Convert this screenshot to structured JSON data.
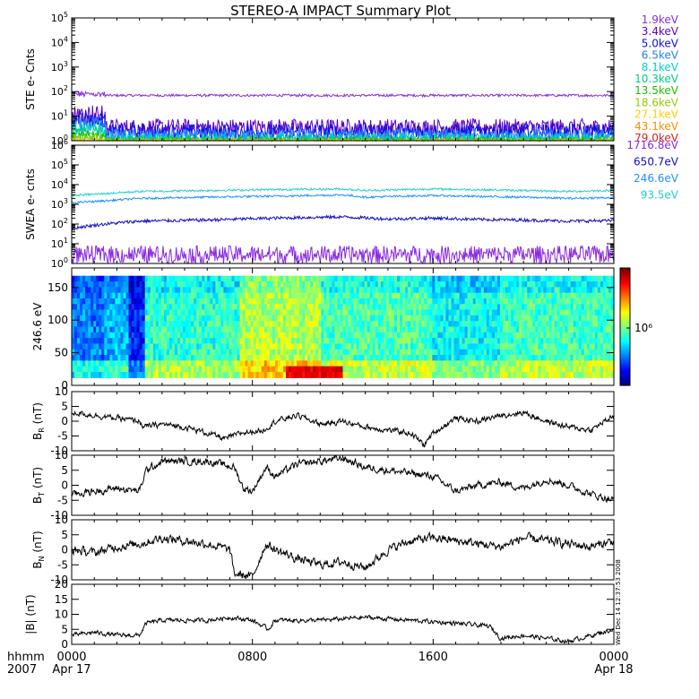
{
  "title": "STEREO-A IMPACT Summary Plot",
  "stamp": "Wed Dec 14 12:37:53 2008",
  "x_axis": {
    "ticks": [
      {
        "hour": 0,
        "label": "0000",
        "sub": "Apr 17"
      },
      {
        "hour": 8,
        "label": "0800",
        "sub": ""
      },
      {
        "hour": 16,
        "label": "1600",
        "sub": ""
      },
      {
        "hour": 24,
        "label": "0000",
        "sub": "Apr 18"
      }
    ],
    "corner_top": "hhmm",
    "corner_bottom": "2007",
    "range": [
      0,
      24
    ]
  },
  "chart_data": [
    {
      "id": "ste",
      "type": "line",
      "ylabel": "STE e- Cnts",
      "yscale": "log",
      "ylim_exp": [
        0,
        5
      ],
      "ticks": [
        0,
        1,
        2,
        3,
        4,
        5
      ],
      "series": [
        {
          "name": "1.9keV",
          "color": "#8a2be2",
          "level": 70,
          "noise": 0.05,
          "early": 100
        },
        {
          "name": "3.4keV",
          "color": "#5a00c8",
          "level": 3.5,
          "noise": 0.35,
          "early": 15
        },
        {
          "name": "5.0keV",
          "color": "#1010e0",
          "level": 2.2,
          "noise": 0.35,
          "early": 10
        },
        {
          "name": "6.5keV",
          "color": "#2080ff",
          "level": 1.5,
          "noise": 0.3,
          "early": 6
        },
        {
          "name": "8.1keV",
          "color": "#00d0d0",
          "level": 1.2,
          "noise": 0.25,
          "early": 4
        },
        {
          "name": "10.3keV",
          "color": "#00d080",
          "level": 1.0,
          "noise": 0.2,
          "early": 3
        },
        {
          "name": "13.5keV",
          "color": "#20c000",
          "level": 1.0,
          "noise": 0.15,
          "early": 2
        },
        {
          "name": "18.6keV",
          "color": "#90d000",
          "level": 1.0,
          "noise": 0.1,
          "early": 1.5
        },
        {
          "name": "27.1keV",
          "color": "#ffd000",
          "level": 1.0,
          "noise": 0.05,
          "early": 1.2
        },
        {
          "name": "43.1keV",
          "color": "#ff8c00",
          "level": 1.0,
          "noise": 0.02,
          "early": 1.1
        },
        {
          "name": "79.0keV",
          "color": "#e02020",
          "level": 1.0,
          "noise": 0.01,
          "early": 1.0
        }
      ]
    },
    {
      "id": "swea",
      "type": "line",
      "ylabel": "SWEA e- cnts",
      "yscale": "log",
      "ylim_exp": [
        0,
        6
      ],
      "ticks": [
        0,
        1,
        2,
        3,
        4,
        5,
        6
      ],
      "series": [
        {
          "name": "1716.8eV",
          "color": "#8a2be2",
          "x": [
            0,
            24
          ],
          "y": [
            3,
            3
          ],
          "noise": 0.5
        },
        {
          "name": "650.7eV",
          "color": "#1010c0",
          "x": [
            0,
            1.5,
            3,
            6,
            9,
            12,
            14,
            16,
            18,
            20,
            22,
            24
          ],
          "y": [
            60,
            100,
            140,
            160,
            200,
            230,
            180,
            200,
            170,
            160,
            140,
            150
          ],
          "noise": 0.08
        },
        {
          "name": "246.6eV",
          "color": "#1e90ff",
          "x": [
            0,
            1.5,
            3,
            6,
            9,
            12,
            13,
            16,
            18,
            20,
            22,
            24
          ],
          "y": [
            1200,
            1500,
            2000,
            2300,
            2600,
            3000,
            2300,
            2800,
            2500,
            2300,
            2000,
            2200
          ],
          "noise": 0.05
        },
        {
          "name": "93.5eV",
          "color": "#20d0d0",
          "x": [
            0,
            1.5,
            3,
            6,
            9,
            12,
            13,
            16,
            18,
            20,
            22,
            24
          ],
          "y": [
            2800,
            3500,
            4500,
            5000,
            5600,
            6000,
            5000,
            6000,
            5500,
            5000,
            4500,
            5000
          ],
          "noise": 0.05
        }
      ]
    },
    {
      "id": "pad",
      "type": "heatmap",
      "ylabel": "246.6 eV",
      "ylim": [
        0,
        180
      ],
      "ticks": [
        0,
        50,
        100,
        150
      ],
      "colorbar_label": "10⁶",
      "regions": [
        {
          "x0": 0,
          "x1": 1.5,
          "level": 0.25
        },
        {
          "x0": 1.5,
          "x1": 2.5,
          "level": 0.3
        },
        {
          "x0": 2.5,
          "x1": 3.2,
          "level": 0.15
        },
        {
          "x0": 3.2,
          "x1": 7.5,
          "level": 0.42
        },
        {
          "x0": 7.5,
          "x1": 11,
          "level": 0.55
        },
        {
          "x0": 11,
          "x1": 16,
          "level": 0.45
        },
        {
          "x0": 16,
          "x1": 19,
          "level": 0.38
        },
        {
          "x0": 19,
          "x1": 24,
          "level": 0.44
        }
      ]
    },
    {
      "id": "br",
      "type": "line",
      "ylabel": "BR (nT)",
      "ylabel_main": "B",
      "ylabel_sub": "R",
      "ylabel_unit": " (nT)",
      "ylim": [
        -10,
        10
      ],
      "ticks": [
        -10,
        -5,
        0,
        5,
        10
      ],
      "x": [
        0,
        1,
        2,
        3,
        3.2,
        4,
        5,
        6,
        6.8,
        7.5,
        8.5,
        9,
        10,
        11,
        12,
        13,
        14,
        15,
        15.6,
        16,
        17,
        18,
        19,
        20,
        21,
        22,
        23,
        24
      ],
      "y": [
        3,
        2,
        1,
        0,
        -2,
        -1,
        -2,
        -4,
        -6,
        -4,
        -3,
        0,
        2,
        -1,
        0,
        -2,
        -3,
        -4,
        -8,
        -4,
        1,
        0,
        2,
        3,
        0,
        -2,
        -3,
        2
      ],
      "noise": 0.8
    },
    {
      "id": "bt",
      "type": "line",
      "ylabel": "BT (nT)",
      "ylabel_main": "B",
      "ylabel_sub": "T",
      "ylabel_unit": " (nT)",
      "ylim": [
        -10,
        10
      ],
      "ticks": [
        -10,
        -5,
        0,
        5,
        10
      ],
      "x": [
        0,
        1,
        2,
        3,
        3.3,
        3.8,
        4,
        6,
        7.2,
        7.6,
        8,
        8.6,
        9,
        10,
        11,
        12,
        13,
        14,
        15,
        16,
        17,
        18,
        19,
        20,
        21,
        22,
        23,
        24
      ],
      "y": [
        -3,
        -2,
        -1,
        -2,
        5,
        7,
        8,
        8,
        6,
        -1,
        -2,
        6,
        3,
        7,
        8,
        9,
        6,
        5,
        4,
        3,
        -2,
        0,
        1,
        -1,
        2,
        0,
        -3,
        -5
      ],
      "noise": 1.0
    },
    {
      "id": "bn",
      "type": "line",
      "ylabel": "BN (nT)",
      "ylabel_main": "B",
      "ylabel_sub": "N",
      "ylabel_unit": " (nT)",
      "ylim": [
        -10,
        10
      ],
      "ticks": [
        -10,
        -5,
        0,
        5,
        10
      ],
      "x": [
        0,
        1,
        2,
        3,
        4,
        5,
        6,
        7,
        7.2,
        8,
        8.6,
        9,
        10,
        11,
        12,
        13,
        14,
        15,
        16,
        17,
        18,
        19,
        20,
        21,
        22,
        23,
        24
      ],
      "y": [
        0,
        -1,
        1,
        2,
        4,
        3,
        2,
        0,
        -8,
        -9,
        2,
        0,
        -3,
        -5,
        -4,
        -6,
        0,
        3,
        4,
        3,
        2,
        1,
        4,
        3,
        2,
        1,
        3
      ],
      "noise": 1.2
    },
    {
      "id": "bmag",
      "type": "line",
      "ylabel": "|B| (nT)",
      "ylim": [
        0,
        20
      ],
      "ticks": [
        0,
        5,
        10,
        15,
        20
      ],
      "x": [
        0,
        1,
        2,
        3,
        3.3,
        4,
        6,
        7,
        8,
        8.7,
        9,
        11,
        13,
        15,
        17,
        18.5,
        19,
        20,
        21,
        22,
        23,
        24
      ],
      "y": [
        3,
        4,
        3,
        3,
        7,
        8,
        8,
        9,
        8,
        5,
        8,
        8,
        9,
        8,
        7,
        6,
        2,
        3,
        2,
        1,
        3,
        5
      ],
      "noise": 0.6
    }
  ]
}
